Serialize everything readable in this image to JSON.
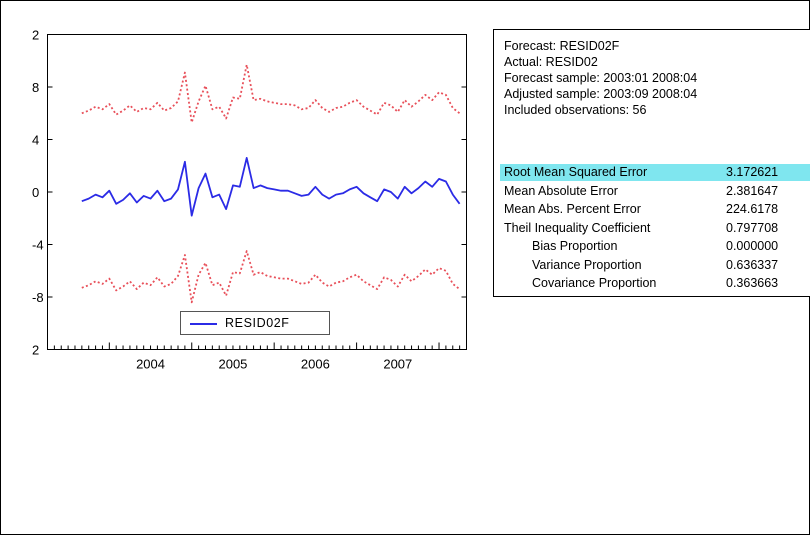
{
  "chart_data": {
    "type": "line",
    "title": "",
    "xlabel": "",
    "ylabel": "",
    "y_tick_labels": [
      "2",
      "8",
      "4",
      "0",
      "-4",
      "-8",
      "2"
    ],
    "x_tick_labels": [
      "2004",
      "2005",
      "2006",
      "2007"
    ],
    "ylim": [
      -12,
      12
    ],
    "grid": false,
    "legend": {
      "placement": "bottom-center",
      "entries": [
        "RESID02F"
      ]
    },
    "series": [
      {
        "name": "RESID02F",
        "style": "solid",
        "color": "#2b2be6",
        "x": [
          "2003:09",
          "2003:10",
          "2003:11",
          "2003:12",
          "2004:01",
          "2004:02",
          "2004:03",
          "2004:04",
          "2004:05",
          "2004:06",
          "2004:07",
          "2004:08",
          "2004:09",
          "2004:10",
          "2004:11",
          "2004:12",
          "2005:01",
          "2005:02",
          "2005:03",
          "2005:04",
          "2005:05",
          "2005:06",
          "2005:07",
          "2005:08",
          "2005:09",
          "2005:10",
          "2005:11",
          "2005:12",
          "2006:01",
          "2006:02",
          "2006:03",
          "2006:04",
          "2006:05",
          "2006:06",
          "2006:07",
          "2006:08",
          "2006:09",
          "2006:10",
          "2006:11",
          "2006:12",
          "2007:01",
          "2007:02",
          "2007:03",
          "2007:04",
          "2007:05",
          "2007:06",
          "2007:07",
          "2007:08",
          "2007:09",
          "2007:10",
          "2007:11",
          "2007:12",
          "2008:01",
          "2008:02",
          "2008:03",
          "2008:04"
        ],
        "values": [
          -0.7,
          -0.5,
          -0.2,
          -0.4,
          0.1,
          -0.9,
          -0.6,
          -0.1,
          -0.8,
          -0.3,
          -0.5,
          0.1,
          -0.7,
          -0.5,
          0.2,
          2.3,
          -1.8,
          0.3,
          1.4,
          -0.4,
          -0.2,
          -1.3,
          0.5,
          0.4,
          2.6,
          0.3,
          0.5,
          0.3,
          0.2,
          0.1,
          0.1,
          -0.1,
          -0.3,
          -0.2,
          0.4,
          -0.2,
          -0.5,
          -0.2,
          -0.1,
          0.2,
          0.4,
          -0.1,
          -0.4,
          -0.7,
          0.2,
          0,
          -0.5,
          0.4,
          -0.1,
          0.3,
          0.8,
          0.4,
          1,
          0.8,
          -0.2,
          -0.9
        ]
      },
      {
        "name": "",
        "style": "dotted",
        "color": "#e8505a",
        "x": [
          "2003:09",
          "2003:10",
          "2003:11",
          "2003:12",
          "2004:01",
          "2004:02",
          "2004:03",
          "2004:04",
          "2004:05",
          "2004:06",
          "2004:07",
          "2004:08",
          "2004:09",
          "2004:10",
          "2004:11",
          "2004:12",
          "2005:01",
          "2005:02",
          "2005:03",
          "2005:04",
          "2005:05",
          "2005:06",
          "2005:07",
          "2005:08",
          "2005:09",
          "2005:10",
          "2005:11",
          "2005:12",
          "2006:01",
          "2006:02",
          "2006:03",
          "2006:04",
          "2006:05",
          "2006:06",
          "2006:07",
          "2006:08",
          "2006:09",
          "2006:10",
          "2006:11",
          "2006:12",
          "2007:01",
          "2007:02",
          "2007:03",
          "2007:04",
          "2007:05",
          "2007:06",
          "2007:07",
          "2007:08",
          "2007:09",
          "2007:10",
          "2007:11",
          "2007:12",
          "2008:01",
          "2008:02",
          "2008:03",
          "2008:04"
        ],
        "values": [
          6,
          6.2,
          6.5,
          6.3,
          6.7,
          5.9,
          6.2,
          6.6,
          6.1,
          6.4,
          6.3,
          6.8,
          6.2,
          6.4,
          6.9,
          9.1,
          5.3,
          6.9,
          8.1,
          6.3,
          6.5,
          5.6,
          7.2,
          7.1,
          9.7,
          7,
          7.1,
          6.9,
          6.8,
          6.7,
          6.7,
          6.6,
          6.3,
          6.4,
          7,
          6.4,
          6.1,
          6.4,
          6.5,
          6.8,
          7,
          6.5,
          6.2,
          5.9,
          6.8,
          6.6,
          6.1,
          7,
          6.5,
          6.9,
          7.4,
          7,
          7.6,
          7.4,
          6.4,
          6
        ]
      },
      {
        "name": "",
        "style": "dotted",
        "color": "#e8505a",
        "x": [
          "2003:09",
          "2003:10",
          "2003:11",
          "2003:12",
          "2004:01",
          "2004:02",
          "2004:03",
          "2004:04",
          "2004:05",
          "2004:06",
          "2004:07",
          "2004:08",
          "2004:09",
          "2004:10",
          "2004:11",
          "2004:12",
          "2005:01",
          "2005:02",
          "2005:03",
          "2005:04",
          "2005:05",
          "2005:06",
          "2005:07",
          "2005:08",
          "2005:09",
          "2005:10",
          "2005:11",
          "2005:12",
          "2006:01",
          "2006:02",
          "2006:03",
          "2006:04",
          "2006:05",
          "2006:06",
          "2006:07",
          "2006:08",
          "2006:09",
          "2006:10",
          "2006:11",
          "2006:12",
          "2007:01",
          "2007:02",
          "2007:03",
          "2007:04",
          "2007:05",
          "2007:06",
          "2007:07",
          "2007:08",
          "2007:09",
          "2007:10",
          "2007:11",
          "2007:12",
          "2008:01",
          "2008:02",
          "2008:03",
          "2008:04"
        ],
        "values": [
          -7.3,
          -7.1,
          -6.8,
          -7,
          -6.6,
          -7.5,
          -7.2,
          -6.8,
          -7.4,
          -6.9,
          -7.1,
          -6.5,
          -7.2,
          -7,
          -6.4,
          -4.8,
          -8.4,
          -6.3,
          -5.4,
          -7.1,
          -6.9,
          -7.9,
          -6.1,
          -6.2,
          -4.5,
          -6.3,
          -6.1,
          -6.4,
          -6.5,
          -6.6,
          -6.6,
          -6.8,
          -7,
          -6.9,
          -6.3,
          -6.9,
          -7.2,
          -6.9,
          -6.8,
          -6.5,
          -6.3,
          -6.8,
          -7.1,
          -7.4,
          -6.5,
          -6.7,
          -7.2,
          -6.3,
          -6.8,
          -6.4,
          -5.9,
          -6.3,
          -5.8,
          -6,
          -7,
          -7.4
        ]
      }
    ]
  },
  "stats": {
    "info_lines": [
      "Forecast: RESID02F",
      "Actual: RESID02",
      "Forecast sample: 2003:01 2008:04",
      "Adjusted sample: 2003:09 2008:04",
      "Included observations: 56"
    ],
    "rows": [
      {
        "label": "Root Mean Squared Error",
        "value": "3.172621",
        "highlight": true,
        "indent": false
      },
      {
        "label": "Mean Absolute Error",
        "value": "2.381647",
        "highlight": false,
        "indent": false
      },
      {
        "label": "Mean Abs. Percent Error",
        "value": "224.6178",
        "highlight": false,
        "indent": false
      },
      {
        "label": "Theil Inequality Coefficient",
        "value": "0.797708",
        "highlight": false,
        "indent": false
      },
      {
        "label": "Bias Proportion",
        "value": "0.000000",
        "highlight": false,
        "indent": true
      },
      {
        "label": "Variance Proportion",
        "value": "0.636337",
        "highlight": false,
        "indent": true
      },
      {
        "label": "Covariance Proportion",
        "value": "0.363663",
        "highlight": false,
        "indent": true
      }
    ],
    "highlight_color": "#7fe6ef"
  }
}
